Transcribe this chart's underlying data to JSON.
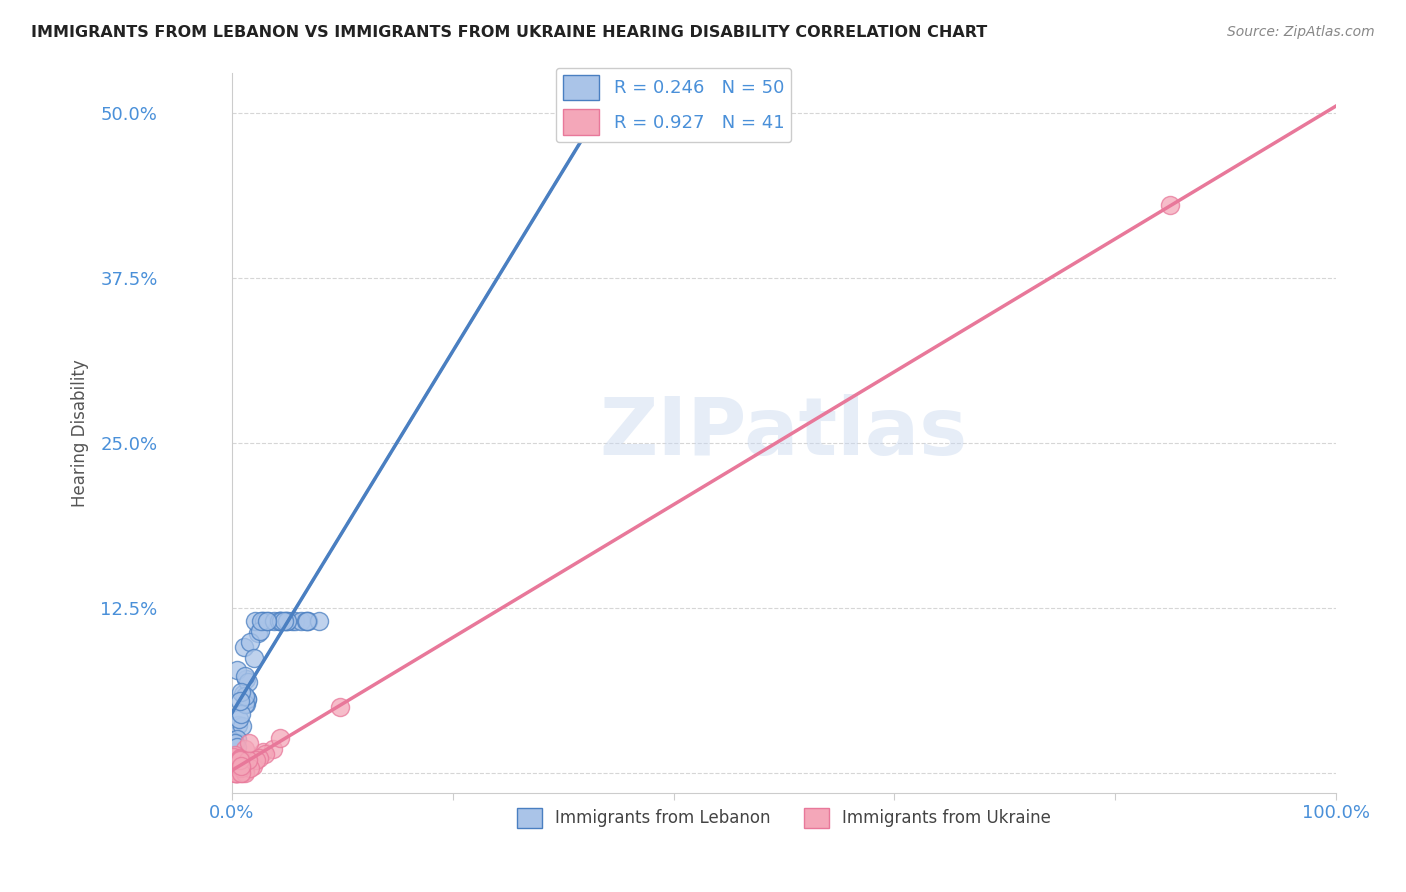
{
  "title": "IMMIGRANTS FROM LEBANON VS IMMIGRANTS FROM UKRAINE HEARING DISABILITY CORRELATION CHART",
  "source": "Source: ZipAtlas.com",
  "ylabel": "Hearing Disability",
  "xlim": [
    0,
    1.0
  ],
  "ylim": [
    -0.015,
    0.53
  ],
  "yticks": [
    0.0,
    0.125,
    0.25,
    0.375,
    0.5
  ],
  "yticklabels": [
    "",
    "12.5%",
    "25.0%",
    "37.5%",
    "50.0%"
  ],
  "xticks": [
    0.0,
    0.2,
    0.4,
    0.6,
    0.8,
    1.0
  ],
  "xticklabels": [
    "0.0%",
    "",
    "",
    "",
    "",
    "100.0%"
  ],
  "lebanon_fill_color": "#aac4e8",
  "ukraine_fill_color": "#f4a7b9",
  "lebanon_line_color": "#4a7fc1",
  "ukraine_line_color": "#e8789a",
  "R_lebanon": 0.246,
  "N_lebanon": 50,
  "R_ukraine": 0.927,
  "N_ukraine": 41,
  "watermark": "ZIPatlas",
  "grid_color": "#cccccc",
  "tick_color": "#4a90d9",
  "title_color": "#222222",
  "source_color": "#888888",
  "ylabel_color": "#555555"
}
